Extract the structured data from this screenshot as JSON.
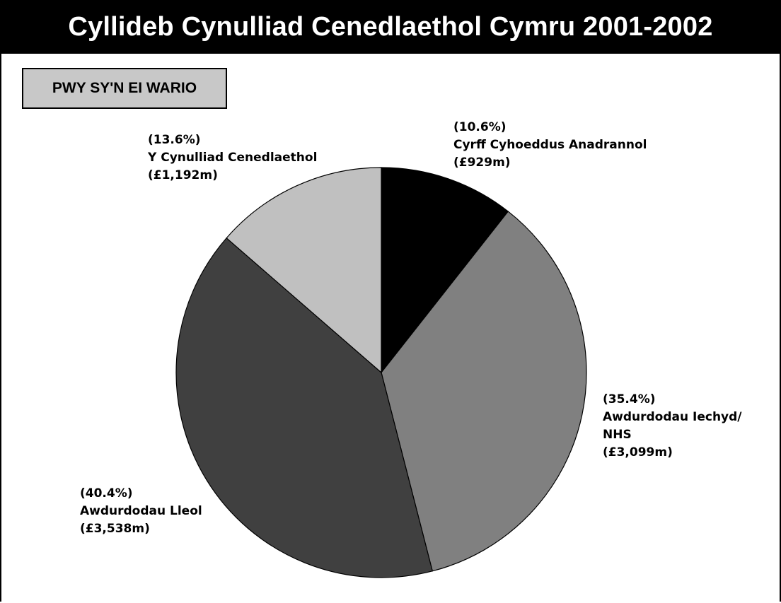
{
  "header": {
    "title": "Cyllideb Cynulliad Cenedlaethol Cymru 2001-2002",
    "section_label": "PWY SY'N EI WARIO"
  },
  "chart_data": {
    "type": "pie",
    "title": "Cyllideb Cynulliad Cenedlaethol Cymru 2001-2002",
    "subtitle": "PWY SY'N EI WARIO",
    "start": "12 o'clock, clockwise",
    "slices": [
      {
        "name": "Cyrff Cyhoeddus Anadrannol",
        "name_lines": [
          "Cyrff Cyhoeddus Anadrannol"
        ],
        "percent_label": "(10.6%)",
        "value_label": "(£929m)",
        "value": 929,
        "color": "#000000"
      },
      {
        "name": "Awdurdodau Iechyd/ NHS",
        "name_lines": [
          "Awdurdodau Iechyd/",
          "NHS"
        ],
        "percent_label": "(35.4%)",
        "value_label": "(£3,099m)",
        "value": 3099,
        "color": "#808080"
      },
      {
        "name": "Awdurdodau Lleol",
        "name_lines": [
          "Awdurdodau Lleol"
        ],
        "percent_label": "(40.4%)",
        "value_label": "(£3,538m)",
        "value": 3538,
        "color": "#404040"
      },
      {
        "name": "Y Cynulliad Cenedlaethol",
        "name_lines": [
          "Y Cynulliad Cenedlaethol"
        ],
        "percent_label": "(13.6%)",
        "value_label": "(£1,192m)",
        "value": 1192,
        "color": "#c0c0c0"
      }
    ]
  }
}
